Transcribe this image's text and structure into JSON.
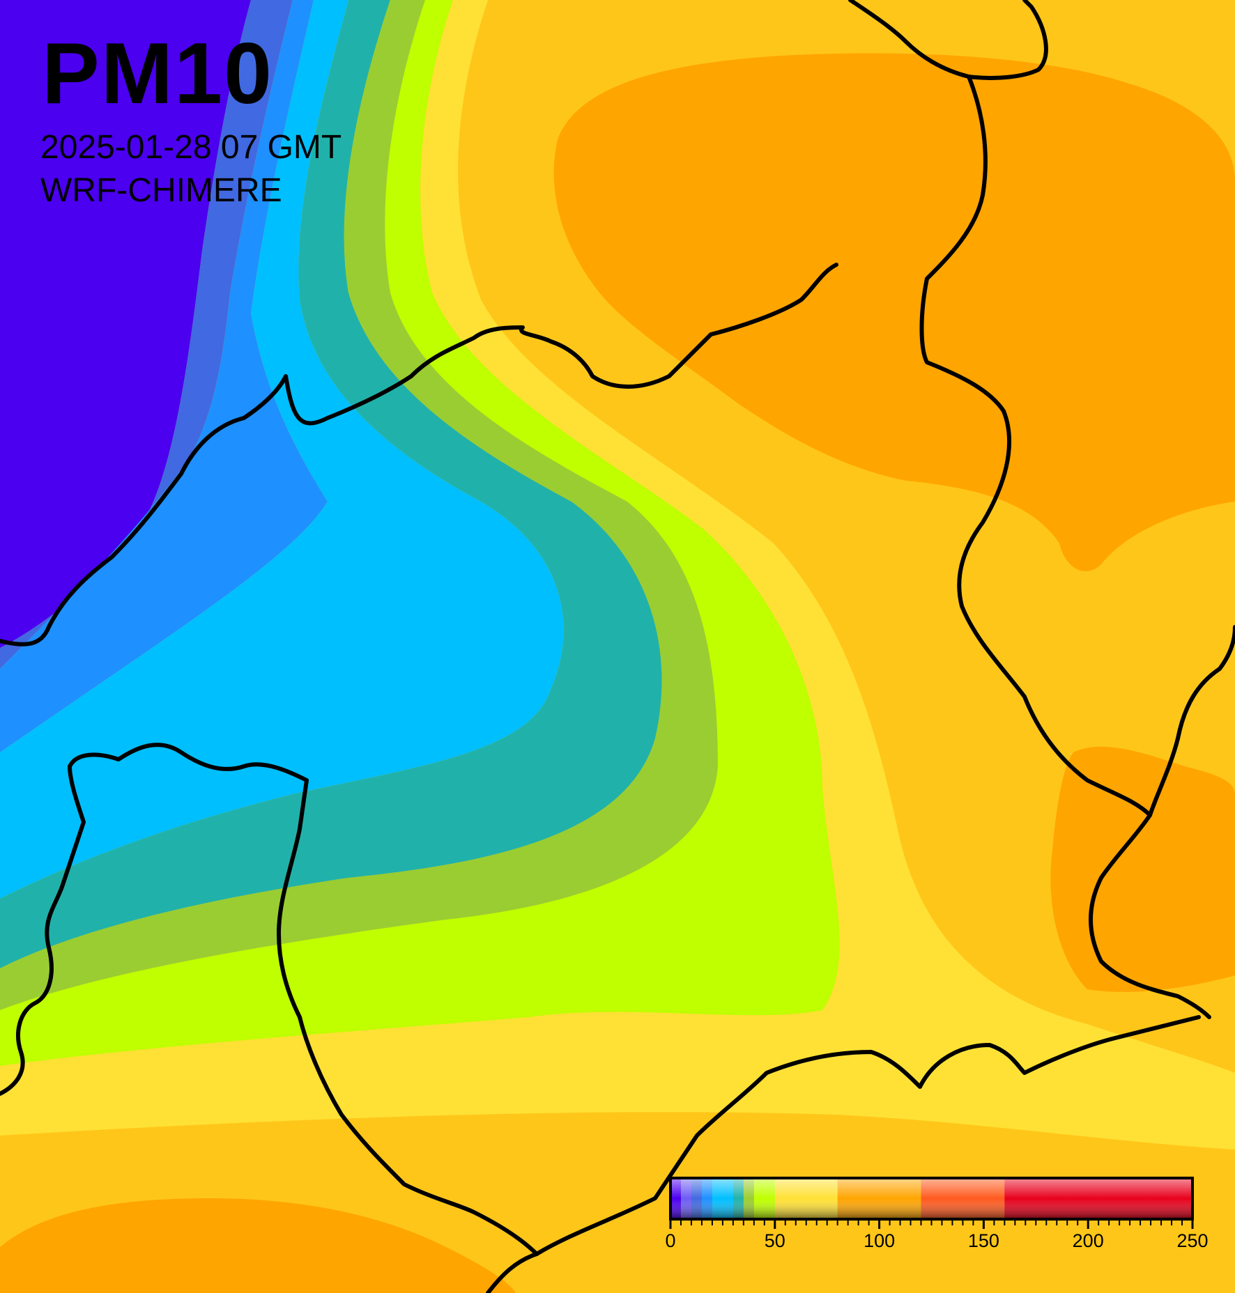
{
  "map": {
    "title": "PM10",
    "datetime": "2025-01-28 07 GMT",
    "model": "WRF-CHIMERE"
  },
  "colorbar": {
    "min": 0,
    "max": 250,
    "tick_labels": [
      "0",
      "50",
      "100",
      "150",
      "200",
      "250"
    ],
    "tick_values": [
      0,
      50,
      100,
      150,
      200,
      250
    ],
    "minor_tick_step": 5,
    "bins": [
      {
        "from": 0,
        "to": 5,
        "color": "#4b00f0"
      },
      {
        "from": 5,
        "to": 10,
        "color": "#6d5cf4"
      },
      {
        "from": 10,
        "to": 15,
        "color": "#4169e1"
      },
      {
        "from": 15,
        "to": 20,
        "color": "#1e90ff"
      },
      {
        "from": 20,
        "to": 30,
        "color": "#00bfff"
      },
      {
        "from": 30,
        "to": 35,
        "color": "#20b2aa"
      },
      {
        "from": 35,
        "to": 40,
        "color": "#9acd32"
      },
      {
        "from": 40,
        "to": 50,
        "color": "#bfff00"
      },
      {
        "from": 50,
        "to": 80,
        "color": "#ffe135"
      },
      {
        "from": 80,
        "to": 120,
        "color": "#ffa500"
      },
      {
        "from": 120,
        "to": 160,
        "color": "#ff5a1e"
      },
      {
        "from": 160,
        "to": 250,
        "color": "#e8001c"
      }
    ]
  },
  "palette": {
    "violet": "#4b00f0",
    "slate-blue": "#4169e1",
    "dodger-blue": "#1e90ff",
    "sky-blue": "#00bfff",
    "teal": "#20b2aa",
    "olive-green": "#9acd32",
    "lime": "#bfff00",
    "yellow": "#ffe135",
    "light-orange": "#ffc61a",
    "orange": "#ffa500",
    "border": "#000000"
  }
}
